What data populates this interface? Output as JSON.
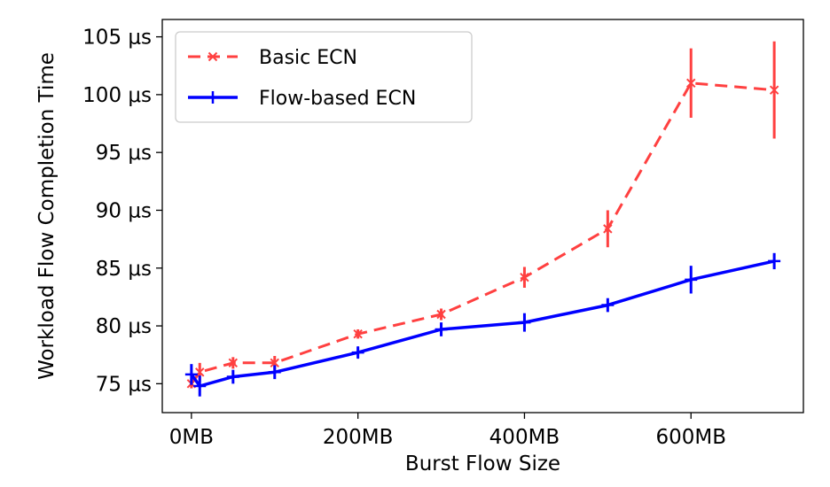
{
  "chart_data": {
    "type": "line",
    "xlabel": "Burst Flow Size",
    "ylabel": "Workload Flow Completion Time",
    "xlim": [
      -35,
      735
    ],
    "ylim": [
      72.5,
      106.5
    ],
    "x_ticks": [
      0,
      200,
      400,
      600
    ],
    "x_tick_labels": [
      "0MB",
      "200MB",
      "400MB",
      "600MB"
    ],
    "y_ticks": [
      75,
      80,
      85,
      90,
      95,
      100,
      105
    ],
    "y_tick_labels": [
      "75 μs",
      "80 μs",
      "85 μs",
      "90 μs",
      "95 μs",
      "100 μs",
      "105 μs"
    ],
    "grid": false,
    "legend_position": "top-left",
    "series": [
      {
        "name": "Basic ECN",
        "color": "#ff4040",
        "line_style": "dashed",
        "marker": "x",
        "x": [
          0,
          10,
          50,
          100,
          200,
          300,
          400,
          500,
          600,
          700
        ],
        "y": [
          75.0,
          76.0,
          76.8,
          76.8,
          79.3,
          81.0,
          84.2,
          88.4,
          101.0,
          100.4
        ],
        "error": [
          0.4,
          0.8,
          0.5,
          0.6,
          0.4,
          0.5,
          0.9,
          1.6,
          3.0,
          4.2
        ]
      },
      {
        "name": "Flow-based ECN",
        "color": "#0000ff",
        "line_style": "solid",
        "marker": "+",
        "x": [
          0,
          10,
          50,
          100,
          200,
          300,
          400,
          500,
          600,
          700
        ],
        "y": [
          75.8,
          74.8,
          75.6,
          76.0,
          77.7,
          79.7,
          80.3,
          81.8,
          84.0,
          85.6
        ],
        "error": [
          0.9,
          0.9,
          0.6,
          0.6,
          0.5,
          0.6,
          0.8,
          0.6,
          1.2,
          0.7
        ]
      }
    ]
  }
}
